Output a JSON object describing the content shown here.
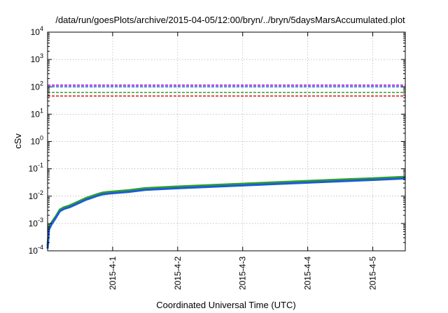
{
  "chart_data": {
    "type": "line",
    "title": "/data/run/goesPlots/archive/2015-04-05/12:00/bryn/../bryn/5daysMarsAccumulated.plot",
    "xlabel": "Coordinated Universal Time (UTC)",
    "ylabel": "cSv",
    "y_scale": "log",
    "ylim": [
      0.0001,
      10000
    ],
    "xlim": [
      "2015-03-31 00:00",
      "2015-04-05 12:00"
    ],
    "y_ticks": [
      {
        "value": 0.0001,
        "base": "10",
        "exp": "-4"
      },
      {
        "value": 0.001,
        "base": "10",
        "exp": "-3"
      },
      {
        "value": 0.01,
        "base": "10",
        "exp": "-2"
      },
      {
        "value": 0.1,
        "base": "10",
        "exp": "-1"
      },
      {
        "value": 1,
        "base": "10",
        "exp": "0"
      },
      {
        "value": 10,
        "base": "10",
        "exp": "1"
      },
      {
        "value": 100,
        "base": "10",
        "exp": "2"
      },
      {
        "value": 1000,
        "base": "10",
        "exp": "3"
      },
      {
        "value": 10000,
        "base": "10",
        "exp": "4"
      }
    ],
    "x_ticks": [
      {
        "value": "2015-04-01 00:00",
        "label": "2015-4-1"
      },
      {
        "value": "2015-04-02 00:00",
        "label": "2015-4-2"
      },
      {
        "value": "2015-04-03 00:00",
        "label": "2015-4-3"
      },
      {
        "value": "2015-04-04 00:00",
        "label": "2015-4-4"
      },
      {
        "value": "2015-04-05 00:00",
        "label": "2015-4-5"
      }
    ],
    "grid": true,
    "legend": "none",
    "thresholds": [
      {
        "value": 115,
        "color": "#9400d3"
      },
      {
        "value": 100,
        "color": "#1c5cd6"
      },
      {
        "value": 62,
        "color": "#2ca02c"
      },
      {
        "value": 46,
        "color": "#e31a1c"
      }
    ],
    "series": [
      {
        "color": "#2ca02c",
        "x": [
          "2015-03-31 00:00",
          "2015-03-31 00:30",
          "2015-03-31 01:30",
          "2015-03-31 03:00",
          "2015-03-31 04:30",
          "2015-03-31 06:00",
          "2015-03-31 08:00",
          "2015-03-31 10:00",
          "2015-03-31 12:00",
          "2015-03-31 14:00",
          "2015-03-31 16:00",
          "2015-03-31 18:00",
          "2015-03-31 20:00",
          "2015-03-31 22:00",
          "2015-04-01 00:00",
          "2015-04-01 06:00",
          "2015-04-01 12:00",
          "2015-04-02 00:00",
          "2015-04-03 00:00",
          "2015-04-04 00:00",
          "2015-04-05 00:00",
          "2015-04-05 12:00"
        ],
        "y": [
          0.00015,
          0.0007,
          0.0011,
          0.0018,
          0.0032,
          0.0039,
          0.0045,
          0.0055,
          0.0068,
          0.0084,
          0.0098,
          0.0115,
          0.0132,
          0.0141,
          0.0147,
          0.0165,
          0.0195,
          0.0225,
          0.0285,
          0.036,
          0.045,
          0.051
        ]
      },
      {
        "color": "#1c5cd6",
        "x": [
          "2015-03-31 00:00",
          "2015-03-31 00:30",
          "2015-03-31 01:30",
          "2015-03-31 03:00",
          "2015-03-31 04:30",
          "2015-03-31 06:00",
          "2015-03-31 08:00",
          "2015-03-31 10:00",
          "2015-03-31 12:00",
          "2015-03-31 14:00",
          "2015-03-31 16:00",
          "2015-03-31 18:00",
          "2015-03-31 20:00",
          "2015-03-31 22:00",
          "2015-04-01 00:00",
          "2015-04-01 06:00",
          "2015-04-01 12:00",
          "2015-04-02 00:00",
          "2015-04-03 00:00",
          "2015-04-04 00:00",
          "2015-04-05 00:00",
          "2015-04-05 12:00"
        ],
        "y": [
          0.00012,
          0.0006,
          0.00095,
          0.0016,
          0.0028,
          0.0034,
          0.0039,
          0.0048,
          0.0059,
          0.0073,
          0.0085,
          0.01,
          0.0115,
          0.0123,
          0.0128,
          0.0143,
          0.017,
          0.0196,
          0.0248,
          0.0313,
          0.0392,
          0.0444
        ]
      }
    ]
  }
}
